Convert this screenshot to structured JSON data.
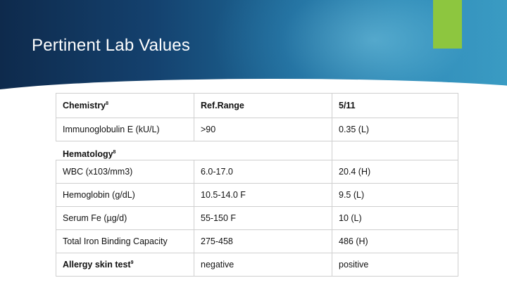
{
  "slide": {
    "title": "Pertinent Lab Values",
    "colors": {
      "banner": "#14416e",
      "accent": "#8dc63f",
      "border": "#cfcfcf"
    }
  },
  "table": {
    "header": {
      "label": "Chemistry",
      "label_ref": "8",
      "ref_range": "Ref.Range",
      "date": "5/11"
    },
    "rows": [
      {
        "name": "Immunoglobulin E (kU/L)",
        "ref": ">90",
        "value": "0.35 (L)"
      },
      {
        "section": "Hematology",
        "section_ref": "8"
      },
      {
        "name": "WBC (x103/mm3)",
        "ref": "6.0-17.0",
        "value": "20.4 (H)"
      },
      {
        "name": "Hemoglobin (g/dL)",
        "ref": "10.5-14.0 F",
        "value": "9.5 (L)"
      },
      {
        "name": "Serum Fe (µg/d)",
        "ref": "55-150 F",
        "value": "10 (L)"
      },
      {
        "name": "Total Iron Binding Capacity",
        "ref": "275-458",
        "value": "486 (H)"
      },
      {
        "name": "Allergy skin test",
        "name_ref": "9",
        "ref": "negative",
        "value": "positive"
      }
    ]
  }
}
